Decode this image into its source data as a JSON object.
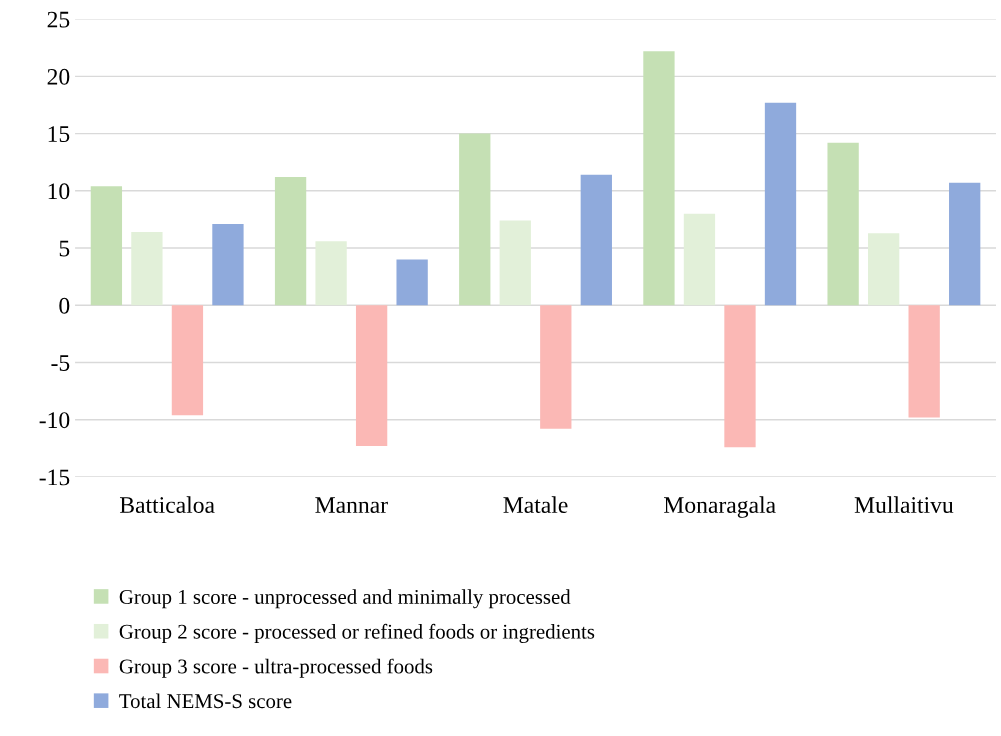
{
  "chart_data": {
    "type": "bar",
    "categories": [
      "Batticaloa",
      "Mannar",
      "Matale",
      "Monaragala",
      "Mullaitivu"
    ],
    "series": [
      {
        "name": "Group 1 score - unprocessed and minimally processed",
        "color": "#c5e0b4",
        "values": [
          10.4,
          11.2,
          15.0,
          22.2,
          14.2
        ]
      },
      {
        "name": "Group 2 score - processed or refined foods or ingredients",
        "color": "#e2f0d9",
        "values": [
          6.4,
          5.6,
          7.4,
          8.0,
          6.3
        ]
      },
      {
        "name": "Group 3 score - ultra-processed foods",
        "color": "#fbb8b5",
        "values": [
          -9.6,
          -12.3,
          -10.8,
          -12.4,
          -9.8
        ]
      },
      {
        "name": "Total NEMS-S score",
        "color": "#8faadc",
        "values": [
          7.1,
          4.0,
          11.4,
          17.7,
          10.7
        ]
      }
    ],
    "ylim": [
      -15,
      25
    ],
    "yticks": [
      -15,
      -10,
      -5,
      0,
      5,
      10,
      15,
      20,
      25
    ],
    "grid": "y",
    "legend": "bottom"
  }
}
